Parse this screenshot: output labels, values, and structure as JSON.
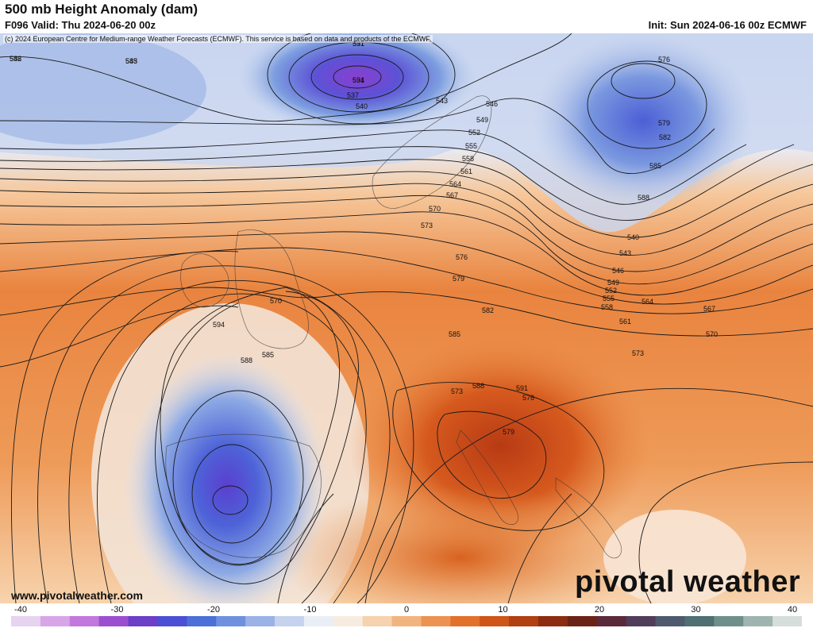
{
  "header": {
    "title": "500 mb Height Anomaly (dam)",
    "valid": "F096 Valid: Thu 2024-06-20 00z",
    "init": "Init: Sun 2024-06-16 00z ECMWF"
  },
  "copyright": "(c) 2024 European Centre for Medium-range Weather Forecasts (ECMWF). This service is based on data and products of the ECMWF.",
  "website": "www.pivotalweather.com",
  "brand": "pivotal weather",
  "contour_labels": [
    "546",
    "543",
    "537",
    "531",
    "537",
    "540",
    "543",
    "546",
    "549",
    "552",
    "555",
    "558",
    "561",
    "564",
    "567",
    "570",
    "573",
    "576",
    "579",
    "582",
    "585",
    "588",
    "591",
    "594",
    "585",
    "588",
    "570",
    "573",
    "576",
    "579",
    "582",
    "585",
    "588",
    "540",
    "543",
    "546",
    "549",
    "552",
    "555",
    "558",
    "561",
    "564",
    "567",
    "570",
    "573",
    "576",
    "579",
    "582",
    "585",
    "591",
    "594"
  ],
  "colorbar": {
    "ticks": [
      "-40",
      "-30",
      "-20",
      "-10",
      "0",
      "10",
      "20",
      "30",
      "40"
    ],
    "colors": [
      "#e6d3ef",
      "#d8a6e8",
      "#c278dc",
      "#9b4fd0",
      "#6b3fc7",
      "#4b4fd6",
      "#4d6fd8",
      "#6f90de",
      "#9ab2e6",
      "#c5d3ee",
      "#eaeef6",
      "#f7ece0",
      "#f6d2ae",
      "#f2b47f",
      "#ec9352",
      "#e2712c",
      "#cf5418",
      "#b03f12",
      "#8c2d12",
      "#6b2318",
      "#5a2a3a",
      "#4f3d5a",
      "#4f5a6f",
      "#4f7072",
      "#6f8f8a",
      "#9fb4b0",
      "#d6dedc"
    ]
  }
}
